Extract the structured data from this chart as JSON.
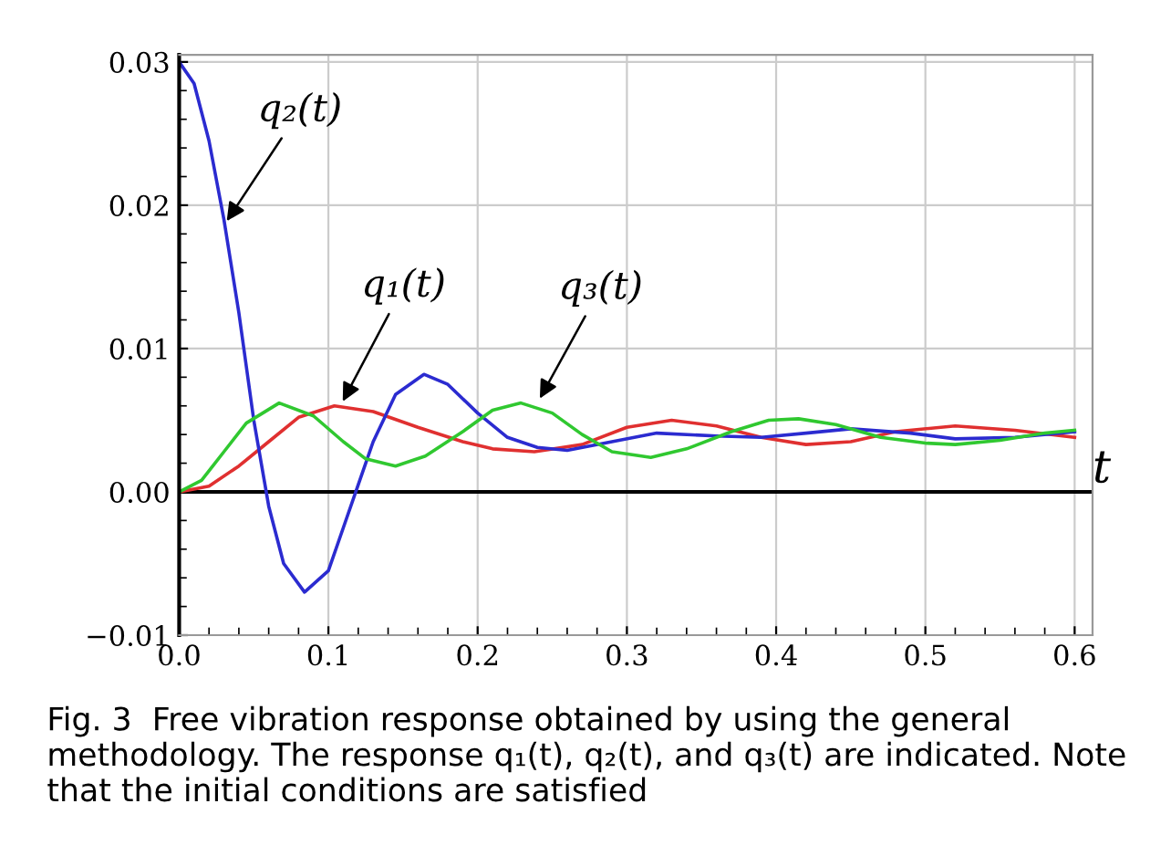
{
  "chart_data": {
    "type": "line",
    "xlabel": "t",
    "series": [
      {
        "color": "#e03030",
        "x": [
          0,
          0.02,
          0.04,
          0.06,
          0.08,
          0.104,
          0.13,
          0.16,
          0.19,
          0.21,
          0.238,
          0.27,
          0.3,
          0.33,
          0.36,
          0.39,
          0.42,
          0.45,
          0.48,
          0.52,
          0.56,
          0.6
        ],
        "values": [
          0,
          0.0004,
          0.0018,
          0.0035,
          0.0052,
          0.006,
          0.0056,
          0.0045,
          0.0035,
          0.003,
          0.0028,
          0.0033,
          0.0045,
          0.005,
          0.0046,
          0.0038,
          0.0033,
          0.0035,
          0.0042,
          0.0046,
          0.0043,
          0.0038
        ]
      },
      {
        "color": "#2b2bd0",
        "x": [
          0,
          0.01,
          0.02,
          0.03,
          0.04,
          0.05,
          0.06,
          0.07,
          0.084,
          0.1,
          0.11,
          0.12,
          0.13,
          0.145,
          0.164,
          0.18,
          0.2,
          0.22,
          0.24,
          0.26,
          0.29,
          0.32,
          0.36,
          0.39,
          0.42,
          0.45,
          0.49,
          0.52,
          0.56,
          0.6
        ],
        "values": [
          0.03,
          0.0285,
          0.0245,
          0.019,
          0.0125,
          0.005,
          -0.001,
          -0.005,
          -0.007,
          -0.0055,
          -0.0025,
          0.0005,
          0.0035,
          0.0068,
          0.0082,
          0.0075,
          0.0055,
          0.0038,
          0.0031,
          0.0029,
          0.0035,
          0.0041,
          0.0039,
          0.0038,
          0.0041,
          0.0044,
          0.0041,
          0.0037,
          0.0038,
          0.0042
        ]
      },
      {
        "color": "#30c830",
        "x": [
          0,
          0.015,
          0.03,
          0.045,
          0.067,
          0.09,
          0.11,
          0.125,
          0.145,
          0.165,
          0.19,
          0.21,
          0.229,
          0.25,
          0.27,
          0.29,
          0.316,
          0.34,
          0.37,
          0.395,
          0.415,
          0.44,
          0.47,
          0.5,
          0.52,
          0.55,
          0.58,
          0.6
        ],
        "values": [
          0,
          0.0008,
          0.0028,
          0.0048,
          0.0062,
          0.0053,
          0.0035,
          0.0023,
          0.0018,
          0.0025,
          0.0042,
          0.0057,
          0.0062,
          0.0055,
          0.004,
          0.0028,
          0.0024,
          0.003,
          0.0042,
          0.005,
          0.0051,
          0.0047,
          0.0038,
          0.0034,
          0.0033,
          0.0036,
          0.0041,
          0.0043
        ]
      }
    ],
    "xlim": [
      0,
      0.612
    ],
    "ylim": [
      -0.01,
      0.0305
    ],
    "xticks": [
      {
        "value": 0,
        "label": "0.0"
      },
      0.1,
      0.2,
      0.3,
      0.4,
      0.5,
      0.6
    ],
    "yticks": [
      {
        "value": -0.01,
        "label": "−0.01"
      },
      {
        "value": 0,
        "label": "0.00"
      },
      0.01,
      0.02,
      0.03
    ],
    "grid": true,
    "legend": false,
    "line_style": "solid",
    "marker": "none",
    "annotations": [
      {
        "text": "q₂(t)",
        "x": 0.03,
        "y": 0.0186
      },
      {
        "text": "q₁(t)",
        "x": 0.108,
        "y": 0.006
      },
      {
        "text": "q₃(t)",
        "x": 0.24,
        "y": 0.0062
      },
      "Fig. 3  Free vibration response obtained by using the general methodology. The response q₁(t), q₂(t), and q₃(t) are indicated. Note that the initial conditions are satisfied"
    ]
  }
}
